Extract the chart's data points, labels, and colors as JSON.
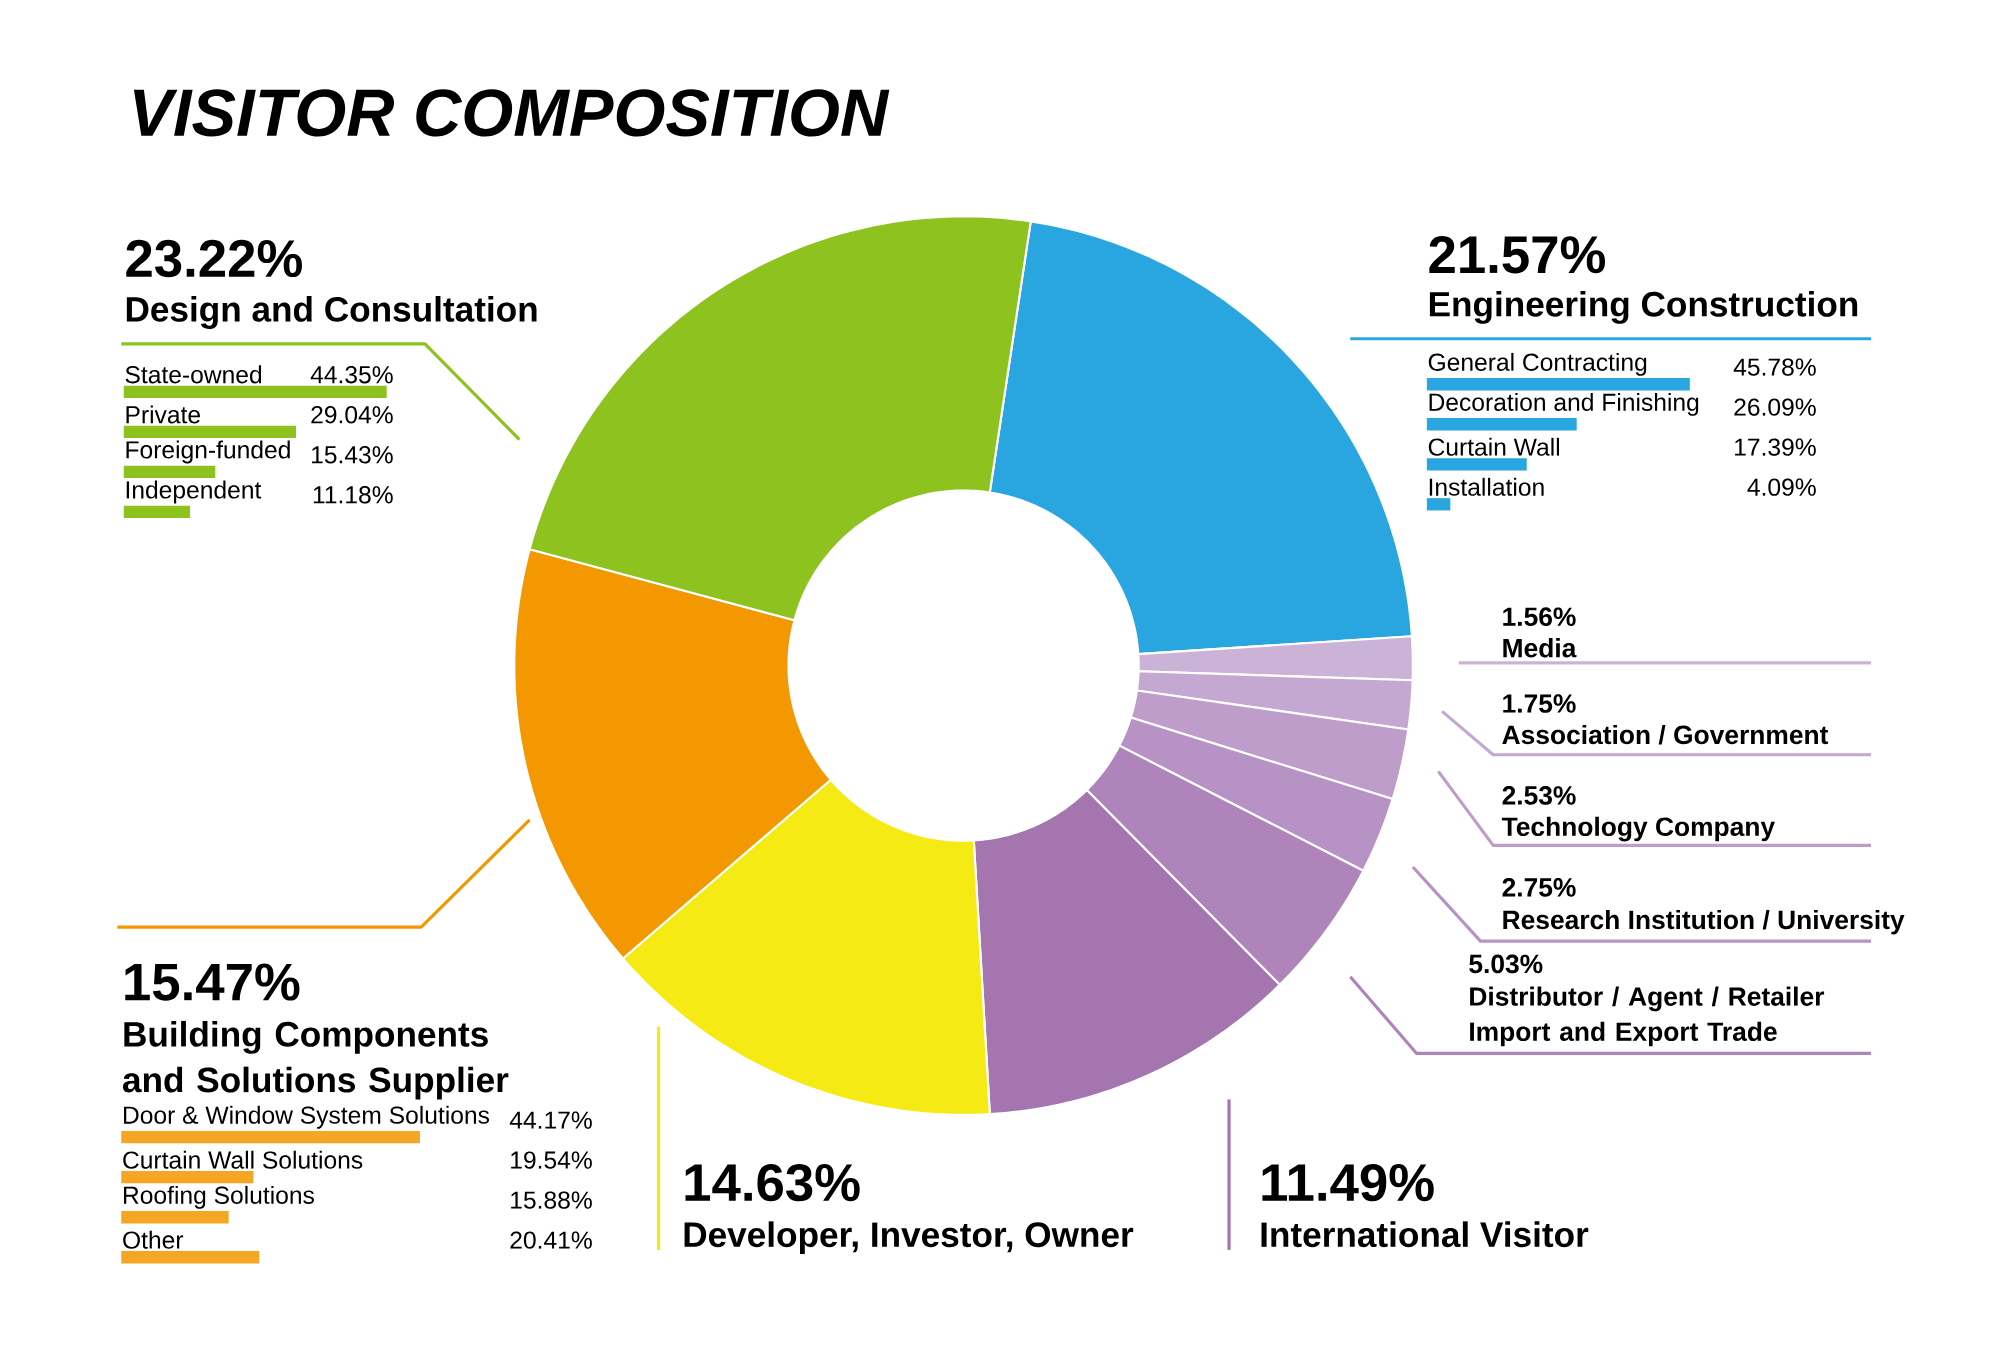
{
  "chart_data": [
    {
      "type": "donut",
      "title": "VISITOR COMPOSITION",
      "categories": [
        "Engineering Construction",
        "Media",
        "Association / Government",
        "Technology Company",
        "Research Institution / University",
        "Distributor / Agent / Retailer Import and Export Trade",
        "International Visitor",
        "Developer, Investor, Owner",
        "Building Components and Solutions Supplier",
        "Design and Consultation"
      ],
      "values": [
        21.57,
        1.56,
        1.75,
        2.53,
        2.75,
        5.03,
        11.49,
        14.63,
        15.47,
        23.22
      ],
      "value_labels": [
        "21.57%",
        "1.56%",
        "1.75%",
        "2.53%",
        "2.75%",
        "5.03%",
        "11.49%",
        "14.63%",
        "15.47%",
        "23.22%"
      ],
      "colors": [
        "#29a6e0",
        "#cbb3d8",
        "#c5a8d1",
        "#bf9dcb",
        "#b792c5",
        "#ae84bb",
        "#a475ae",
        "#f5ea14",
        "#f39800",
        "#8dc21f"
      ]
    },
    {
      "type": "bar",
      "orientation": "horizontal",
      "categories": [
        "State-owned",
        "Private",
        "Foreign-funded",
        "Independent"
      ],
      "values": [
        44.35,
        29.04,
        15.43,
        11.18
      ],
      "value_labels": [
        "44.35%",
        "29.04%",
        "15.43%",
        "11.18%"
      ],
      "color": "#8dc21f"
    },
    {
      "type": "bar",
      "orientation": "horizontal",
      "categories": [
        "General Contracting",
        "Decoration and Finishing",
        "Curtain Wall",
        "Installation"
      ],
      "values": [
        45.78,
        26.09,
        17.39,
        4.09
      ],
      "value_labels": [
        "45.78%",
        "26.09%",
        "17.39%",
        "4.09%"
      ],
      "color": "#29a6e0"
    },
    {
      "type": "bar",
      "orientation": "horizontal",
      "categories": [
        "Door & Window System Solutions",
        "Curtain Wall Solutions",
        "Roofing Solutions",
        "Other"
      ],
      "values": [
        44.17,
        19.54,
        15.88,
        20.41
      ],
      "value_labels": [
        "44.17%",
        "19.54%",
        "15.88%",
        "20.41%"
      ],
      "color": "#f5a623"
    }
  ]
}
